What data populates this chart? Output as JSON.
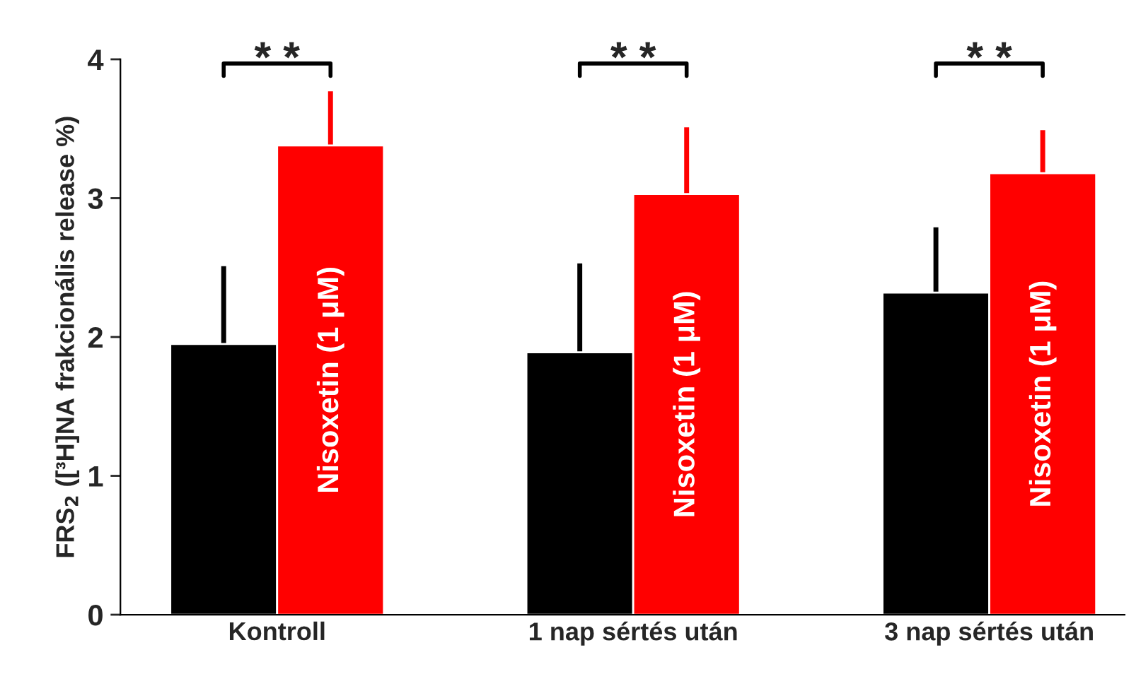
{
  "chart_data": {
    "type": "bar",
    "ylabel": "FRS$_{2}$ ([³H]NA frakcionális release %)",
    "categories": [
      "Kontroll",
      "1 nap sértés után",
      "3 nap sértés után"
    ],
    "series": [
      {
        "color": "#000000",
        "values": [
          1.95,
          1.89,
          2.32
        ],
        "errors": [
          [
            1.95,
            2.51
          ],
          [
            1.89,
            2.53
          ],
          [
            2.32,
            2.79
          ]
        ]
      },
      {
        "name": "Nisoxetin (1 μM)",
        "color": "#ff0000",
        "values": [
          3.38,
          3.03,
          3.18
        ],
        "errors": [
          [
            3.38,
            3.77
          ],
          [
            3.03,
            3.51
          ],
          [
            3.18,
            3.49
          ]
        ]
      }
    ],
    "ylim": [
      0,
      4
    ],
    "yticks": [
      0,
      1,
      2,
      3,
      4
    ],
    "grid": false,
    "legend": false,
    "annotations": [
      "* *",
      "* *",
      "* *"
    ]
  }
}
